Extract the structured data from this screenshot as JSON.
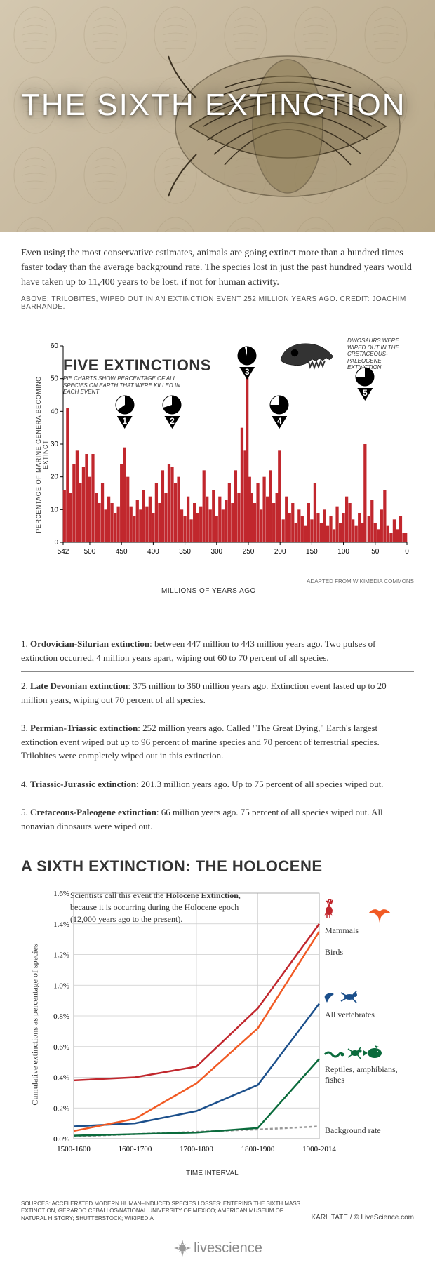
{
  "hero": {
    "title": "THE SIXTH EXTINCTION",
    "bg_color": "#c8baa0",
    "title_color": "#ffffff",
    "title_fontsize": 44
  },
  "intro": "Even using the most conservative estimates, animals are going extinct more than a hundred times faster today than the average background rate. The species lost in just the past hundred years would have taken up to 11,400 years to be lost, if not for human activity.",
  "caption": "ABOVE: TRILOBITES, WIPED OUT IN AN EXTINCTION EVENT 252 MILLION YEARS AGO.  CREDIT: JOACHIM BARRANDE.",
  "chart1": {
    "title": "FIVE EXTINCTIONS",
    "subtitle": "PIE CHARTS SHOW PERCENTAGE OF ALL SPECIES ON EARTH THAT WERE KILLED IN EACH EVENT",
    "ylabel": "PERCENTAGE OF MARINE GENERA BECOMING EXTINCT",
    "xlabel": "MILLIONS OF YEARS AGO",
    "adapted": "ADAPTED FROM WIKIMEDIA COMMONS",
    "dino_note": "DINOSAURS WERE WIPED OUT IN THE CRETACEOUS-PALEOGENE EXTINCTION",
    "bar_color": "#c1272d",
    "ylim": [
      0,
      60
    ],
    "ytick_step": 10,
    "xticks": [
      542,
      500,
      450,
      400,
      350,
      300,
      250,
      200,
      150,
      100,
      50,
      0
    ],
    "markers": [
      {
        "num": 1,
        "x_mya": 445,
        "pie_pct": 65
      },
      {
        "num": 2,
        "x_mya": 370,
        "pie_pct": 70
      },
      {
        "num": 3,
        "x_mya": 252,
        "pie_pct": 96
      },
      {
        "num": 4,
        "x_mya": 201,
        "pie_pct": 75
      },
      {
        "num": 5,
        "x_mya": 66,
        "pie_pct": 75
      }
    ],
    "bars_mya_pct": [
      [
        540,
        16
      ],
      [
        535,
        41
      ],
      [
        530,
        15
      ],
      [
        525,
        24
      ],
      [
        520,
        28
      ],
      [
        515,
        18
      ],
      [
        510,
        23
      ],
      [
        505,
        27
      ],
      [
        500,
        20
      ],
      [
        495,
        27
      ],
      [
        490,
        15
      ],
      [
        485,
        12
      ],
      [
        480,
        18
      ],
      [
        475,
        10
      ],
      [
        470,
        14
      ],
      [
        465,
        12
      ],
      [
        460,
        9
      ],
      [
        455,
        11
      ],
      [
        450,
        24
      ],
      [
        445,
        29
      ],
      [
        440,
        20
      ],
      [
        435,
        11
      ],
      [
        430,
        8
      ],
      [
        425,
        13
      ],
      [
        420,
        10
      ],
      [
        415,
        16
      ],
      [
        410,
        11
      ],
      [
        405,
        14
      ],
      [
        400,
        9
      ],
      [
        395,
        18
      ],
      [
        390,
        12
      ],
      [
        385,
        22
      ],
      [
        380,
        15
      ],
      [
        375,
        24
      ],
      [
        370,
        23
      ],
      [
        365,
        18
      ],
      [
        360,
        20
      ],
      [
        355,
        10
      ],
      [
        350,
        8
      ],
      [
        345,
        14
      ],
      [
        340,
        7
      ],
      [
        335,
        12
      ],
      [
        330,
        9
      ],
      [
        325,
        11
      ],
      [
        320,
        22
      ],
      [
        315,
        14
      ],
      [
        310,
        10
      ],
      [
        305,
        16
      ],
      [
        300,
        8
      ],
      [
        295,
        14
      ],
      [
        290,
        10
      ],
      [
        285,
        13
      ],
      [
        280,
        18
      ],
      [
        275,
        12
      ],
      [
        270,
        22
      ],
      [
        265,
        15
      ],
      [
        260,
        35
      ],
      [
        255,
        28
      ],
      [
        252,
        51
      ],
      [
        248,
        20
      ],
      [
        245,
        15
      ],
      [
        240,
        12
      ],
      [
        235,
        18
      ],
      [
        230,
        10
      ],
      [
        225,
        20
      ],
      [
        220,
        14
      ],
      [
        215,
        22
      ],
      [
        210,
        12
      ],
      [
        205,
        15
      ],
      [
        201,
        28
      ],
      [
        195,
        7
      ],
      [
        190,
        14
      ],
      [
        185,
        9
      ],
      [
        180,
        12
      ],
      [
        175,
        6
      ],
      [
        170,
        10
      ],
      [
        165,
        8
      ],
      [
        160,
        5
      ],
      [
        155,
        12
      ],
      [
        150,
        7
      ],
      [
        145,
        18
      ],
      [
        140,
        9
      ],
      [
        135,
        6
      ],
      [
        130,
        10
      ],
      [
        125,
        5
      ],
      [
        120,
        8
      ],
      [
        115,
        4
      ],
      [
        110,
        11
      ],
      [
        105,
        6
      ],
      [
        100,
        9
      ],
      [
        95,
        14
      ],
      [
        90,
        12
      ],
      [
        85,
        7
      ],
      [
        80,
        5
      ],
      [
        75,
        9
      ],
      [
        70,
        6
      ],
      [
        66,
        30
      ],
      [
        60,
        8
      ],
      [
        55,
        13
      ],
      [
        50,
        6
      ],
      [
        45,
        4
      ],
      [
        40,
        10
      ],
      [
        35,
        16
      ],
      [
        30,
        5
      ],
      [
        25,
        3
      ],
      [
        20,
        7
      ],
      [
        15,
        4
      ],
      [
        10,
        8
      ],
      [
        5,
        3
      ],
      [
        2,
        3
      ]
    ]
  },
  "extinctions": [
    {
      "num": "1",
      "name": "Ordovician-Silurian extinction",
      "text": ": between 447 million to 443 million years ago. Two pulses of extinction occurred, 4 million years apart, wiping out 60 to 70 percent of all species."
    },
    {
      "num": "2",
      "name": "Late Devonian extinction",
      "text": ": 375 million to 360 million years ago. Extinction event lasted up to 20 million years, wiping out 70 percent of all species."
    },
    {
      "num": "3",
      "name": "Permian-Triassic extinction",
      "text": ": 252 million years ago. Called \"The Great Dying,\" Earth's largest extinction event wiped out up to 96 percent of marine species and 70 percent of terrestrial species. Trilobites were completely wiped out in this extinction."
    },
    {
      "num": "4",
      "name": "Triassic-Jurassic extinction",
      "text": ": 201.3 million years ago. Up to 75 percent of all species wiped out."
    },
    {
      "num": "5",
      "name": "Cretaceous-Paleogene extinction",
      "text": ": 66 million years ago. 75 percent of all species wiped out. All nonavian dinosaurs were wiped out."
    }
  ],
  "chart2": {
    "title": "A SIXTH EXTINCTION: THE HOLOCENE",
    "note_pre": "Scientists call this event the ",
    "note_bold": "Holocene Extinction",
    "note_post": ", because it is occurring during the Holocene epoch (12,000 years ago to the present).",
    "ylabel": "Cumulative extinctions as percentage of species",
    "xlabel": "TIME INTERVAL",
    "xticks": [
      "1500-1600",
      "1600-1700",
      "1700-1800",
      "1800-1900",
      "1900-2014"
    ],
    "ylim": [
      0,
      1.6
    ],
    "ytick_step": 0.2,
    "grid_color": "#cccccc",
    "series": {
      "mammals": {
        "color": "#c1272d",
        "label": "Mammals",
        "pts": [
          0.38,
          0.4,
          0.47,
          0.85,
          1.4
        ]
      },
      "birds": {
        "color": "#f15a24",
        "label": "Birds",
        "pts": [
          0.05,
          0.13,
          0.36,
          0.72,
          1.35
        ]
      },
      "vertebrates": {
        "color": "#1b4f8b",
        "label": "All vertebrates",
        "pts": [
          0.08,
          0.1,
          0.18,
          0.35,
          0.88
        ]
      },
      "reptiles": {
        "color": "#0a6b3c",
        "label": "Reptiles, amphibians, fishes",
        "pts": [
          0.02,
          0.03,
          0.04,
          0.07,
          0.52
        ]
      },
      "background": {
        "color": "#999999",
        "label": "Background rate",
        "pts": [
          0.015,
          0.03,
          0.045,
          0.06,
          0.08
        ]
      }
    },
    "line_width": 2.5
  },
  "sources": "SOURCES: ACCELERATED MODERN HUMAN–INDUCED SPECIES LOSSES: ENTERING THE SIXTH MASS EXTINCTION, GERARDO CEBALLOS/NATIONAL UNIVERSITY OF MEXICO; AMERICAN MUSEUM OF NATURAL HISTORY; SHUTTERSTOCK; WIKIPEDIA",
  "credit": "KARL TATE / © LiveScience.com",
  "logo": "livescience"
}
